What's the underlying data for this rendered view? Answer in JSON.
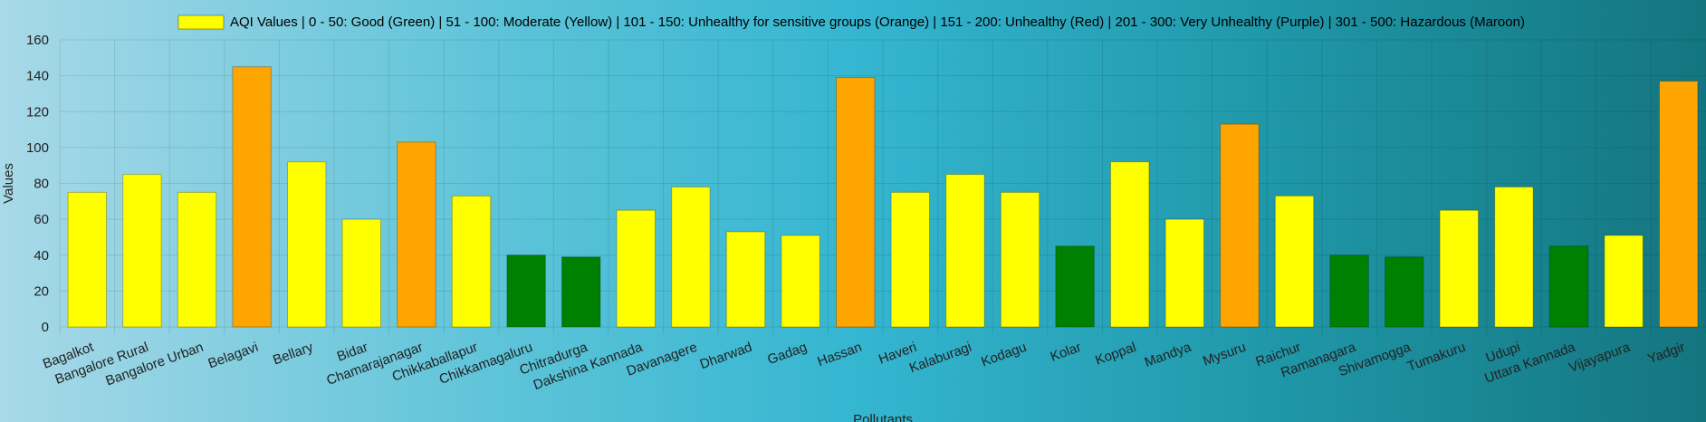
{
  "chart_data": {
    "type": "bar",
    "title": "",
    "xlabel": "Pollutants",
    "ylabel": "Values",
    "ylim": [
      0,
      160
    ],
    "yticks": [
      0,
      20,
      40,
      60,
      80,
      100,
      120,
      140,
      160
    ],
    "grid": true,
    "legend_position": "top",
    "legend": "AQI Values | 0 - 50: Good (Green) | 51 - 100: Moderate (Yellow) | 101 - 150: Unhealthy for sensitive groups (Orange) | 151 - 200: Unhealthy (Red) | 201 - 300: Very Unhealthy (Purple) | 301 - 500: Hazardous (Maroon)",
    "legend_swatch_color": "#ffff00",
    "colors": {
      "good": "#008000",
      "moderate": "#ffff00",
      "sensitive": "#ffa500"
    },
    "categories": [
      "Bagalkot",
      "Bangalore Rural",
      "Bangalore Urban",
      "Belagavi",
      "Bellary",
      "Bidar",
      "Chamarajanagar",
      "Chikkaballapur",
      "Chikkamagaluru",
      "Chitradurga",
      "Dakshina Kannada",
      "Davanagere",
      "Dharwad",
      "Gadag",
      "Hassan",
      "Haveri",
      "Kalaburagi",
      "Kodagu",
      "Kolar",
      "Koppal",
      "Mandya",
      "Mysuru",
      "Raichur",
      "Ramanagara",
      "Shivamogga",
      "Tumakuru",
      "Udupi",
      "Uttara Kannada",
      "Vijayapura",
      "Yadgir"
    ],
    "series": [
      {
        "name": "AQI Values",
        "values": [
          75,
          85,
          75,
          145,
          92,
          60,
          103,
          73,
          40,
          39,
          65,
          78,
          53,
          51,
          139,
          75,
          85,
          75,
          45,
          92,
          60,
          113,
          73,
          40,
          39,
          65,
          78,
          45,
          51,
          137
        ]
      }
    ]
  }
}
